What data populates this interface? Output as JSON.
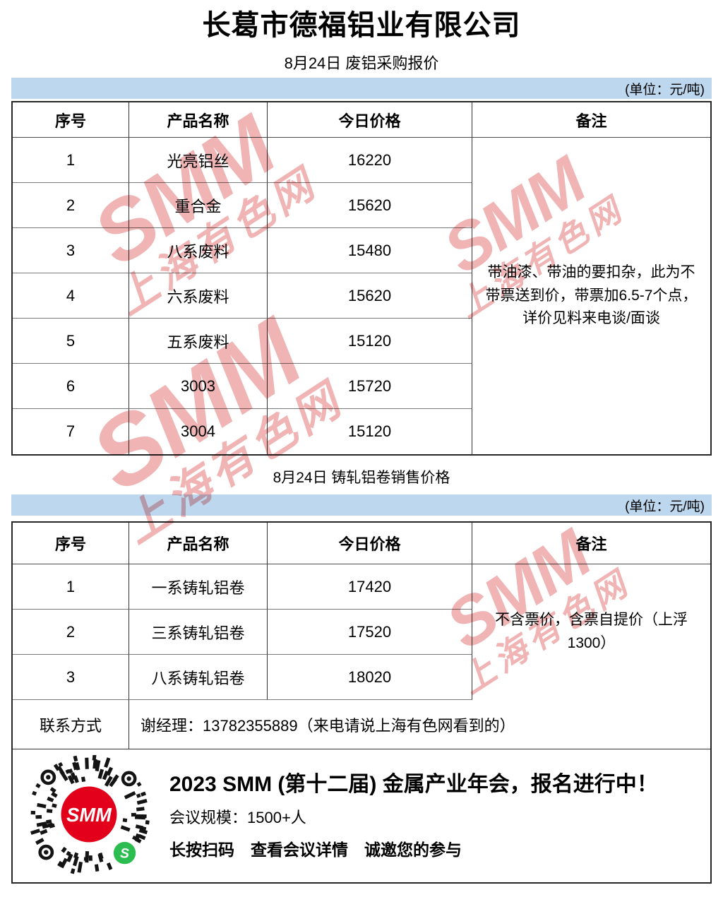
{
  "header": {
    "company": "长葛市德福铝业有限公司"
  },
  "table1": {
    "subtitle": "8月24日 废铝采购报价",
    "unit_label": "(单位：元/吨)",
    "headers": [
      "序号",
      "产品名称",
      "今日价格",
      "备注"
    ],
    "rows": [
      {
        "no": "1",
        "name": "光亮铝丝",
        "price": "16220"
      },
      {
        "no": "2",
        "name": "重合金",
        "price": "15620"
      },
      {
        "no": "3",
        "name": "八系废料",
        "price": "15480"
      },
      {
        "no": "4",
        "name": "六系废料",
        "price": "15620"
      },
      {
        "no": "5",
        "name": "五系废料",
        "price": "15120"
      },
      {
        "no": "6",
        "name": "3003",
        "price": "15720"
      },
      {
        "no": "7",
        "name": "3004",
        "price": "15120"
      }
    ],
    "remark": "带油漆、带油的要扣杂，此为不带票送到价，带票加6.5-7个点，详价见料来电谈/面谈"
  },
  "table2": {
    "subtitle": "8月24日 铸轧铝卷销售价格",
    "unit_label": "(单位：元/吨)",
    "headers": [
      "序号",
      "产品名称",
      "今日价格",
      "备注"
    ],
    "rows": [
      {
        "no": "1",
        "name": "一系铸轧铝卷",
        "price": "17420"
      },
      {
        "no": "2",
        "name": "三系铸轧铝卷",
        "price": "17520"
      },
      {
        "no": "3",
        "name": "八系铸轧铝卷",
        "price": "18020"
      }
    ],
    "remark": "不含票价，含票自提价（上浮1300）",
    "contact_label": "联系方式",
    "contact_value": "谢经理：13782355889（来电请说上海有色网看到的）"
  },
  "footer": {
    "line1": "2023 SMM (第十二届) 金属产业年会，报名进行中！",
    "line2": "会议规模：1500+人",
    "line3": "长按扫码　查看会议详情　诚邀您的参与",
    "qr_label": "SMM",
    "qr_badge": "S"
  },
  "watermark": {
    "en": "SMM",
    "cn": "上海有色网"
  },
  "colors": {
    "band_blue": "#BDD7EE",
    "smm_red": "#E2001A",
    "wechat_green": "#2BBD4F",
    "watermark_pink": "#DB4C4C"
  }
}
